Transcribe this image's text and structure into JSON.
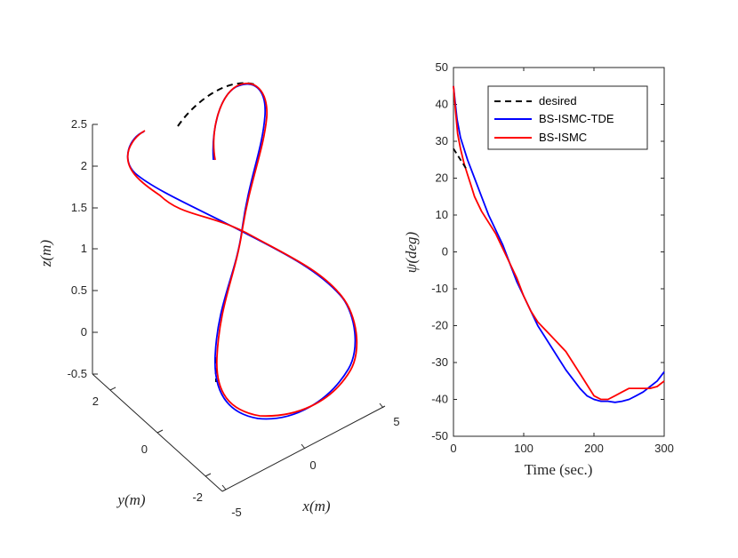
{
  "chart_data": [
    {
      "type": "line3d",
      "xlabel": "x(m)",
      "ylabel": "y(m)",
      "zlabel": "z(m)",
      "xlim": [
        -5,
        5
      ],
      "ylim": [
        -2,
        2
      ],
      "zlim": [
        -0.5,
        2.5
      ],
      "x_ticks": [
        "-5",
        "0",
        "5"
      ],
      "y_ticks": [
        "-2",
        "0",
        "2"
      ],
      "z_ticks": [
        "-0.5",
        "0",
        "0.5",
        "1",
        "1.5",
        "2",
        "2.5"
      ],
      "series": [
        {
          "name": "desired",
          "color": "#000000",
          "style": "dashed"
        },
        {
          "name": "BS-ISMC-TDE",
          "color": "#0000ff",
          "style": "solid"
        },
        {
          "name": "BS-ISMC",
          "color": "#ff0000",
          "style": "solid"
        }
      ]
    },
    {
      "type": "line",
      "xlabel": "Time (sec.)",
      "ylabel": "ψ(deg)",
      "xlim": [
        0,
        300
      ],
      "ylim": [
        -50,
        50
      ],
      "x_ticks": [
        0,
        100,
        200,
        300
      ],
      "y_ticks": [
        -50,
        -40,
        -30,
        -20,
        -10,
        0,
        10,
        20,
        30,
        40,
        50
      ],
      "legend_position": "top-right",
      "series": [
        {
          "name": "desired",
          "color": "#000000",
          "style": "dashed",
          "x": [
            0,
            10,
            20
          ],
          "y": [
            28,
            25,
            22
          ]
        },
        {
          "name": "BS-ISMC-TDE",
          "color": "#0000ff",
          "style": "solid",
          "x": [
            0,
            5,
            10,
            20,
            30,
            40,
            50,
            60,
            70,
            80,
            90,
            100,
            110,
            120,
            130,
            140,
            150,
            160,
            170,
            180,
            190,
            200,
            210,
            220,
            230,
            240,
            250,
            260,
            270,
            280,
            290,
            300
          ],
          "y": [
            45,
            36,
            31,
            25,
            20,
            15,
            10,
            6,
            2,
            -3,
            -8,
            -12,
            -16,
            -20,
            -23,
            -26,
            -29,
            -32,
            -34.5,
            -37,
            -39,
            -40,
            -40.5,
            -40.5,
            -40.8,
            -40.5,
            -40,
            -39,
            -38,
            -36.5,
            -35,
            -32.5
          ]
        },
        {
          "name": "BS-ISMC",
          "color": "#ff0000",
          "style": "solid",
          "x": [
            0,
            3,
            6,
            10,
            15,
            20,
            25,
            30,
            40,
            50,
            60,
            70,
            80,
            90,
            100,
            110,
            120,
            130,
            140,
            150,
            160,
            170,
            180,
            190,
            200,
            210,
            220,
            230,
            240,
            250,
            260,
            270,
            280,
            290,
            300
          ],
          "y": [
            45,
            38,
            32,
            28,
            24,
            21,
            18,
            15,
            11,
            8,
            5,
            1,
            -3,
            -7,
            -12,
            -16,
            -19,
            -21,
            -23,
            -25,
            -27,
            -30,
            -33,
            -36,
            -39,
            -40,
            -40,
            -39,
            -38,
            -37,
            -37,
            -37,
            -37,
            -36.5,
            -35
          ]
        }
      ]
    }
  ]
}
